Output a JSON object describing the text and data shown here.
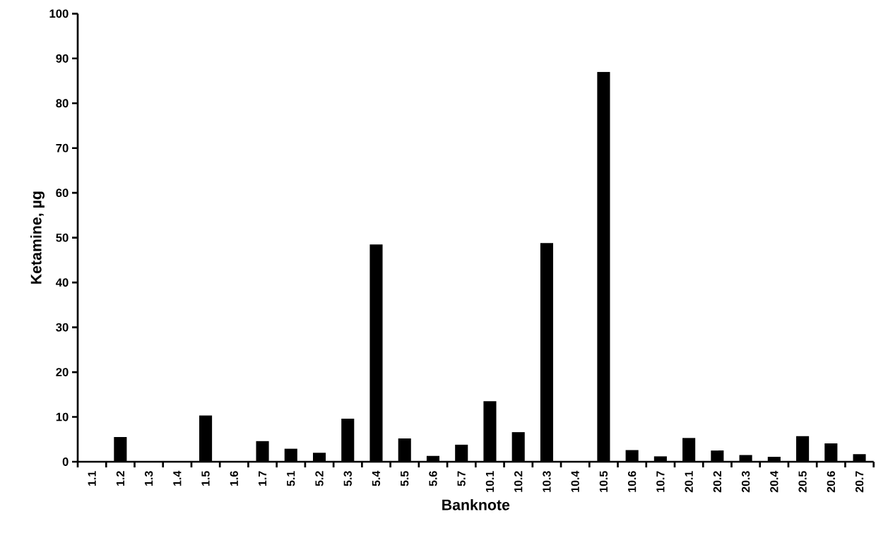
{
  "chart_data": {
    "type": "bar",
    "xlabel": "Banknote",
    "ylabel": "Ketamine, µg",
    "categories": [
      "1.1",
      "1.2",
      "1.3",
      "1.4",
      "1.5",
      "1.6",
      "1.7",
      "5.1",
      "5.2",
      "5.3",
      "5.4",
      "5.5",
      "5.6",
      "5.7",
      "10.1",
      "10.2",
      "10.3",
      "10.4",
      "10.5",
      "10.6",
      "10.7",
      "20.1",
      "20.2",
      "20.3",
      "20.4",
      "20.5",
      "20.6",
      "20.7"
    ],
    "values": [
      0,
      5.5,
      0,
      0,
      10.3,
      0,
      4.6,
      2.9,
      2.0,
      9.6,
      48.5,
      5.2,
      1.3,
      3.8,
      13.5,
      6.6,
      48.8,
      0,
      87.0,
      2.6,
      1.2,
      5.3,
      2.5,
      1.5,
      1.1,
      5.7,
      4.1,
      1.7
    ],
    "color": "#000000",
    "ylim": [
      0,
      100
    ],
    "yticks": [
      0,
      10,
      20,
      30,
      40,
      50,
      60,
      70,
      80,
      90,
      100
    ]
  }
}
